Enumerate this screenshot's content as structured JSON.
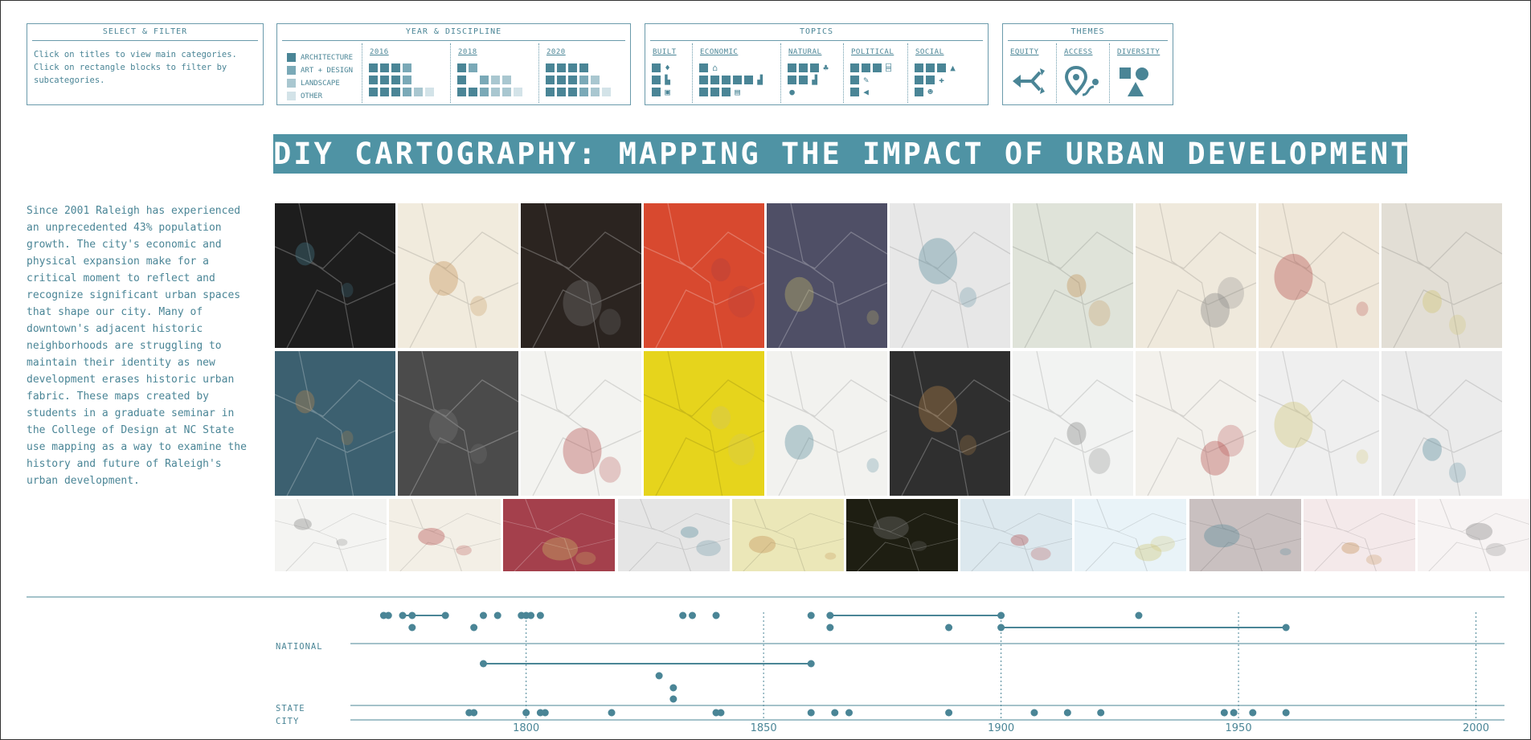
{
  "filters": {
    "select_filter": {
      "title": "SELECT & FILTER",
      "lines": [
        "Click on titles to view main categories.",
        "Click on rectangle blocks to filter by",
        "subcategories."
      ]
    },
    "year_discipline": {
      "title": "YEAR & DISCIPLINE",
      "legend": [
        {
          "label": "ARCHITECTURE",
          "color": "#4a8596"
        },
        {
          "label": "ART + DESIGN",
          "color": "#7aa9b7"
        },
        {
          "label": "LANDSCAPE",
          "color": "#a9c7d0"
        },
        {
          "label": "OTHER",
          "color": "#d3e3e8"
        }
      ],
      "years": [
        "2016",
        "2018",
        "2020"
      ]
    },
    "topics": {
      "title": "TOPICS",
      "items": [
        "BUILT",
        "ECONOMIC",
        "NATURAL",
        "POLITICAL",
        "SOCIAL"
      ]
    },
    "themes": {
      "title": "THEMES",
      "items": [
        "EQUITY",
        "ACCESS",
        "DIVERSITY"
      ]
    }
  },
  "title": "DIY CARTOGRAPHY: MAPPING THE IMPACT OF URBAN DEVELOPMENT",
  "intro_lines": [
    "Since 2001 Raleigh has experienced",
    "an unprecedented 43% population",
    "growth. The city's economic and",
    "physical expansion make for a",
    "critical moment to reflect and",
    "recognize significant urban spaces",
    "that shape our city. Many of",
    "downtown's adjacent historic",
    "neighborhoods are struggling to",
    "maintain their identity as new",
    "development erases historic urban",
    "fabric. These maps created by",
    "students in a graduate seminar in",
    "the College of Design at NC State",
    "use mapping as a way to examine the",
    "history and future of Raleigh's",
    "urban development."
  ],
  "gallery": {
    "row1": [
      "#1d1d1d",
      "#f1ebdd",
      "#2b2420",
      "#d8492f",
      "#4f4f66",
      "#e7e7e7",
      "#dfe3d9",
      "#efe9dc",
      "#efe7d9",
      "#e2ded5"
    ],
    "row2": [
      "#3c6070",
      "#4b4b4b",
      "#f3f3f0",
      "#e6d41c",
      "#f2f2ef",
      "#2f2f2f",
      "#f2f3f2",
      "#f3f1ec",
      "#efefef",
      "#ebebeb"
    ],
    "row3": [
      "#f4f4f2",
      "#f3efe6",
      "#a4404c",
      "#e5e5e5",
      "#ebe7b8",
      "#1e1e12",
      "#dce8ee",
      "#e9f3f8",
      "#c9c0c0",
      "#f4e9ea",
      "#f7f3f3"
    ]
  },
  "timeline": {
    "labels": {
      "national": "NATIONAL",
      "state": "STATE",
      "city": "CITY"
    },
    "ticks": [
      "1800",
      "1850",
      "1900",
      "1950",
      "2000"
    ],
    "x_range": [
      1763,
      2006
    ],
    "national": {
      "points": [
        {
          "year": 1770,
          "lane": 0
        },
        {
          "year": 1771,
          "lane": 0
        },
        {
          "year": 1774,
          "lane": 0
        },
        {
          "year": 1776,
          "lane": 0
        },
        {
          "year": 1776,
          "lane": 1
        },
        {
          "year": 1783,
          "lane": 0
        },
        {
          "year": 1789,
          "lane": 1
        },
        {
          "year": 1791,
          "lane": 0
        },
        {
          "year": 1794,
          "lane": 0
        },
        {
          "year": 1799,
          "lane": 0
        },
        {
          "year": 1800,
          "lane": 0
        },
        {
          "year": 1801,
          "lane": 0
        },
        {
          "year": 1803,
          "lane": 0
        },
        {
          "year": 1833,
          "lane": 0
        },
        {
          "year": 1835,
          "lane": 0
        },
        {
          "year": 1840,
          "lane": 0
        },
        {
          "year": 1860,
          "lane": 0
        },
        {
          "year": 1864,
          "lane": 0
        },
        {
          "year": 1864,
          "lane": 1
        },
        {
          "year": 1889,
          "lane": 1
        },
        {
          "year": 1900,
          "lane": 0
        },
        {
          "year": 1900,
          "lane": 1
        },
        {
          "year": 1929,
          "lane": 0
        },
        {
          "year": 1960,
          "lane": 1
        }
      ],
      "spans": [
        {
          "start": 1774,
          "end": 1783,
          "lane": 0
        },
        {
          "start": 1864,
          "end": 1900,
          "lane": 0
        },
        {
          "start": 1900,
          "end": 1960,
          "lane": 1
        }
      ]
    },
    "state": {
      "points": [
        {
          "year": 1791,
          "lane": 0
        },
        {
          "year": 1860,
          "lane": 0
        },
        {
          "year": 1828,
          "lane": 1
        },
        {
          "year": 1831,
          "lane": 2
        },
        {
          "year": 1831,
          "lane": 3
        }
      ],
      "spans": [
        {
          "start": 1791,
          "end": 1860,
          "lane": 0
        }
      ]
    },
    "city": {
      "points": [
        1788,
        1789,
        1800,
        1803,
        1804,
        1818,
        1840,
        1841,
        1860,
        1865,
        1868,
        1889,
        1907,
        1914,
        1921,
        1947,
        1949,
        1953,
        1960
      ]
    }
  }
}
